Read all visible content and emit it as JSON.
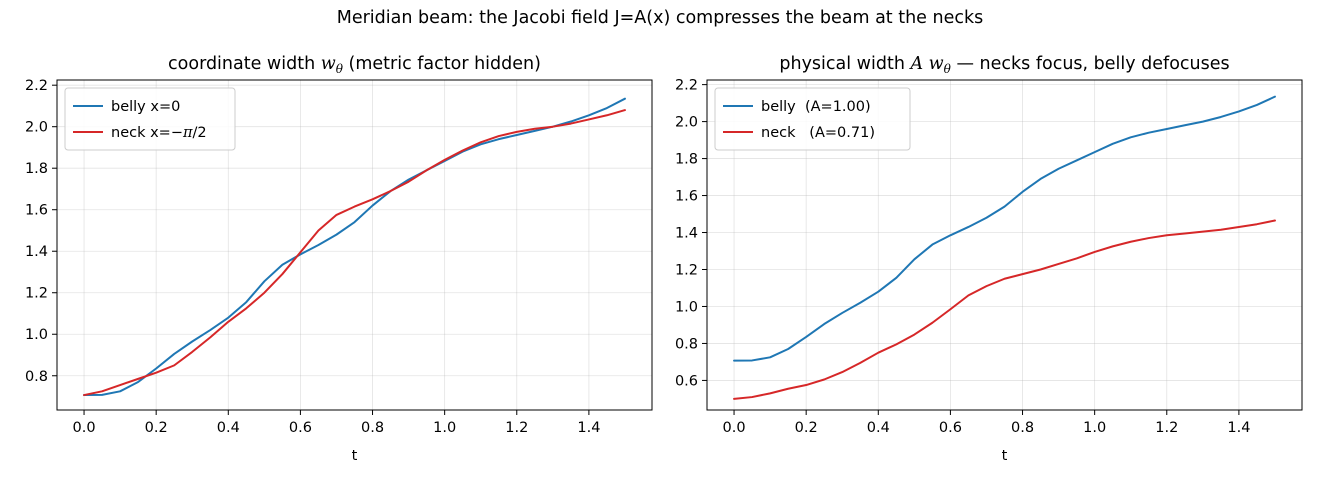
{
  "suptitle": "Meridian beam: the Jacobi field J=A(x) compresses the beam at the necks",
  "chart_data": [
    {
      "type": "line",
      "title_main": "coordinate width ",
      "title_sym": "w",
      "title_sub": "θ",
      "title_rest": "  (metric factor hidden)",
      "xlabel": "t",
      "ylabel": "",
      "xlim": [
        -0.075,
        1.575
      ],
      "ylim": [
        0.635,
        2.225
      ],
      "xticks": [
        0.0,
        0.2,
        0.4,
        0.6,
        0.8,
        1.0,
        1.2,
        1.4
      ],
      "xtick_labels": [
        "0.0",
        "0.2",
        "0.4",
        "0.6",
        "0.8",
        "1.0",
        "1.2",
        "1.4"
      ],
      "yticks": [
        0.8,
        1.0,
        1.2,
        1.4,
        1.6,
        1.8,
        2.0,
        2.2
      ],
      "ytick_labels": [
        "0.8",
        "1.0",
        "1.2",
        "1.4",
        "1.6",
        "1.8",
        "2.0",
        "2.2"
      ],
      "grid": true,
      "legend_position": "upper-left",
      "series": [
        {
          "name": "belly x=0",
          "color": "#1f77b4",
          "x": [
            0.0,
            0.05,
            0.1,
            0.15,
            0.2,
            0.25,
            0.3,
            0.35,
            0.4,
            0.45,
            0.5,
            0.55,
            0.6,
            0.65,
            0.7,
            0.75,
            0.8,
            0.85,
            0.9,
            0.95,
            1.0,
            1.05,
            1.1,
            1.15,
            1.2,
            1.25,
            1.3,
            1.35,
            1.4,
            1.45,
            1.5
          ],
          "values": [
            0.707,
            0.708,
            0.725,
            0.77,
            0.835,
            0.905,
            0.965,
            1.02,
            1.08,
            1.155,
            1.255,
            1.335,
            1.385,
            1.43,
            1.48,
            1.54,
            1.62,
            1.69,
            1.745,
            1.79,
            1.835,
            1.88,
            1.915,
            1.94,
            1.96,
            1.98,
            2.0,
            2.025,
            2.055,
            2.09,
            2.135
          ]
        },
        {
          "name": "neck x=−π/2",
          "name_main": "neck x=−",
          "name_sym": "π",
          "name_rest": "/2",
          "color": "#d62728",
          "x": [
            0.0,
            0.05,
            0.1,
            0.15,
            0.2,
            0.25,
            0.3,
            0.35,
            0.4,
            0.45,
            0.5,
            0.55,
            0.6,
            0.65,
            0.7,
            0.75,
            0.8,
            0.85,
            0.9,
            0.95,
            1.0,
            1.05,
            1.1,
            1.15,
            1.2,
            1.25,
            1.3,
            1.35,
            1.4,
            1.45,
            1.5
          ],
          "values": [
            0.707,
            0.725,
            0.755,
            0.785,
            0.815,
            0.85,
            0.915,
            0.985,
            1.06,
            1.125,
            1.2,
            1.29,
            1.395,
            1.5,
            1.575,
            1.615,
            1.65,
            1.69,
            1.735,
            1.79,
            1.84,
            1.885,
            1.925,
            1.955,
            1.975,
            1.99,
            2.0,
            2.015,
            2.035,
            2.055,
            2.08
          ]
        }
      ]
    },
    {
      "type": "line",
      "title_main": "physical width ",
      "title_sym": "A w",
      "title_sub": "θ",
      "title_rest": "  — necks focus, belly defocuses",
      "xlabel": "t",
      "ylabel": "",
      "xlim": [
        -0.075,
        1.575
      ],
      "ylim": [
        0.44,
        2.225
      ],
      "xticks": [
        0.0,
        0.2,
        0.4,
        0.6,
        0.8,
        1.0,
        1.2,
        1.4
      ],
      "xtick_labels": [
        "0.0",
        "0.2",
        "0.4",
        "0.6",
        "0.8",
        "1.0",
        "1.2",
        "1.4"
      ],
      "yticks": [
        0.6,
        0.8,
        1.0,
        1.2,
        1.4,
        1.6,
        1.8,
        2.0,
        2.2
      ],
      "ytick_labels": [
        "0.6",
        "0.8",
        "1.0",
        "1.2",
        "1.4",
        "1.6",
        "1.8",
        "2.0",
        "2.2"
      ],
      "grid": true,
      "legend_position": "upper-left",
      "series": [
        {
          "name": "belly  (A=1.00)",
          "color": "#1f77b4",
          "x": [
            0.0,
            0.05,
            0.1,
            0.15,
            0.2,
            0.25,
            0.3,
            0.35,
            0.4,
            0.45,
            0.5,
            0.55,
            0.6,
            0.65,
            0.7,
            0.75,
            0.8,
            0.85,
            0.9,
            0.95,
            1.0,
            1.05,
            1.1,
            1.15,
            1.2,
            1.25,
            1.3,
            1.35,
            1.4,
            1.45,
            1.5
          ],
          "values": [
            0.707,
            0.708,
            0.725,
            0.77,
            0.835,
            0.905,
            0.965,
            1.02,
            1.08,
            1.155,
            1.255,
            1.335,
            1.385,
            1.43,
            1.48,
            1.54,
            1.62,
            1.69,
            1.745,
            1.79,
            1.835,
            1.88,
            1.915,
            1.94,
            1.96,
            1.98,
            2.0,
            2.025,
            2.055,
            2.09,
            2.135
          ]
        },
        {
          "name": "neck   (A=0.71)",
          "color": "#d62728",
          "x": [
            0.0,
            0.05,
            0.1,
            0.15,
            0.2,
            0.25,
            0.3,
            0.35,
            0.4,
            0.45,
            0.5,
            0.55,
            0.6,
            0.65,
            0.7,
            0.75,
            0.8,
            0.85,
            0.9,
            0.95,
            1.0,
            1.05,
            1.1,
            1.15,
            1.2,
            1.25,
            1.3,
            1.35,
            1.4,
            1.45,
            1.5
          ],
          "values": [
            0.5,
            0.51,
            0.53,
            0.555,
            0.575,
            0.605,
            0.645,
            0.695,
            0.75,
            0.795,
            0.848,
            0.912,
            0.985,
            1.06,
            1.11,
            1.15,
            1.175,
            1.2,
            1.23,
            1.26,
            1.295,
            1.325,
            1.35,
            1.37,
            1.385,
            1.395,
            1.405,
            1.415,
            1.43,
            1.445,
            1.465
          ]
        }
      ]
    }
  ]
}
